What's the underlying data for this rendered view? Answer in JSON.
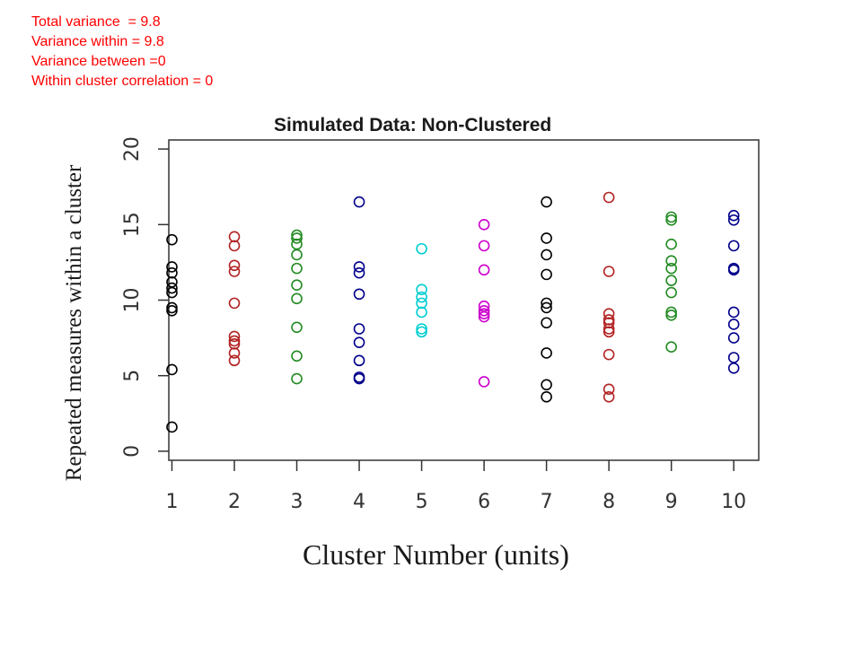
{
  "annotation_lines": [
    "Total variance  = 9.8",
    "Variance within = 9.8",
    "Variance between =0",
    "Within cluster correlation = 0"
  ],
  "chart_data": {
    "type": "scatter",
    "title": "Simulated Data: Non-Clustered",
    "xlabel": "Cluster Number (units)",
    "ylabel": "Repeated measures within a cluster",
    "xlim": [
      0.95,
      10.4
    ],
    "ylim": [
      -0.6,
      20.6
    ],
    "x_ticks": [
      "1",
      "2",
      "3",
      "4",
      "5",
      "6",
      "7",
      "8",
      "9",
      "10"
    ],
    "y_ticks": [
      "0",
      "5",
      "10",
      "15",
      "20"
    ],
    "grid": false,
    "series": [
      {
        "x": 1,
        "color": "#000000",
        "values": [
          14.0,
          12.2,
          11.8,
          11.2,
          10.8,
          10.5,
          9.5,
          9.3,
          5.4,
          1.6
        ]
      },
      {
        "x": 2,
        "color": "#b22222",
        "values": [
          14.2,
          13.6,
          12.3,
          11.9,
          9.8,
          7.6,
          7.3,
          7.1,
          6.5,
          6.0
        ]
      },
      {
        "x": 3,
        "color": "#228b22",
        "values": [
          14.3,
          14.1,
          13.7,
          13.0,
          12.1,
          11.0,
          10.1,
          8.2,
          6.3,
          4.8
        ]
      },
      {
        "x": 4,
        "color": "#00008b",
        "values": [
          16.5,
          12.2,
          11.8,
          10.4,
          8.1,
          7.2,
          6.0,
          4.9,
          4.8
        ]
      },
      {
        "x": 5,
        "color": "#00ced1",
        "values": [
          13.4,
          10.7,
          10.2,
          9.8,
          9.2,
          8.1,
          7.9
        ]
      },
      {
        "x": 6,
        "color": "#cc00cc",
        "values": [
          15.0,
          13.6,
          12.0,
          9.6,
          9.3,
          9.1,
          8.9,
          4.6
        ]
      },
      {
        "x": 7,
        "color": "#000000",
        "values": [
          16.5,
          14.1,
          13.0,
          11.7,
          9.8,
          9.5,
          8.5,
          6.5,
          4.4,
          3.6
        ]
      },
      {
        "x": 8,
        "color": "#b22222",
        "values": [
          16.8,
          11.9,
          9.1,
          8.7,
          8.5,
          8.1,
          7.9,
          6.4,
          4.1,
          3.6
        ]
      },
      {
        "x": 9,
        "color": "#228b22",
        "values": [
          15.5,
          15.3,
          13.7,
          12.6,
          12.1,
          11.3,
          10.5,
          9.2,
          9.0,
          6.9
        ]
      },
      {
        "x": 10,
        "color": "#00008b",
        "values": [
          15.6,
          15.3,
          13.6,
          12.1,
          12.0,
          9.2,
          8.4,
          7.5,
          6.2,
          5.5
        ]
      }
    ]
  }
}
